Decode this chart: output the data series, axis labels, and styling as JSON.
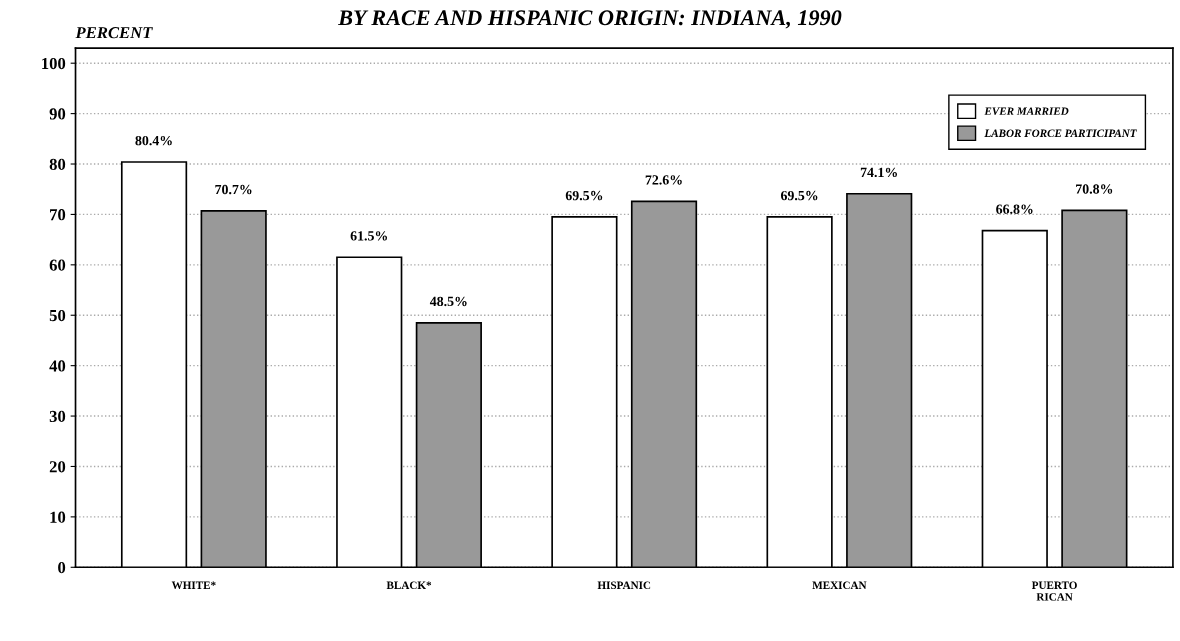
{
  "chart_data": {
    "type": "bar",
    "title": "BY RACE AND HISPANIC ORIGIN: INDIANA, 1990",
    "ylabel": "PERCENT",
    "categories": [
      "WHITE*",
      "BLACK*",
      "HISPANIC",
      "MEXICAN",
      "PUERTO\nRICAN"
    ],
    "series": [
      {
        "name": "EVER MARRIED",
        "color": "#ffffff",
        "values": [
          80.4,
          61.5,
          69.5,
          69.5,
          66.8
        ],
        "value_labels": [
          "80.4%",
          "61.5%",
          "69.5%",
          "69.5%",
          "66.8%"
        ]
      },
      {
        "name": "LABOR FORCE PARTICIPANT",
        "color": "#999999",
        "values": [
          70.7,
          48.5,
          72.6,
          74.1,
          70.8
        ],
        "value_labels": [
          "70.7%",
          "48.5%",
          "72.6%",
          "74.1%",
          "70.8%"
        ]
      }
    ],
    "ylim": [
      0,
      103
    ],
    "yticks": [
      0,
      10,
      20,
      30,
      40,
      50,
      60,
      70,
      80,
      90,
      100
    ],
    "grid": "y",
    "legend": "top right"
  }
}
